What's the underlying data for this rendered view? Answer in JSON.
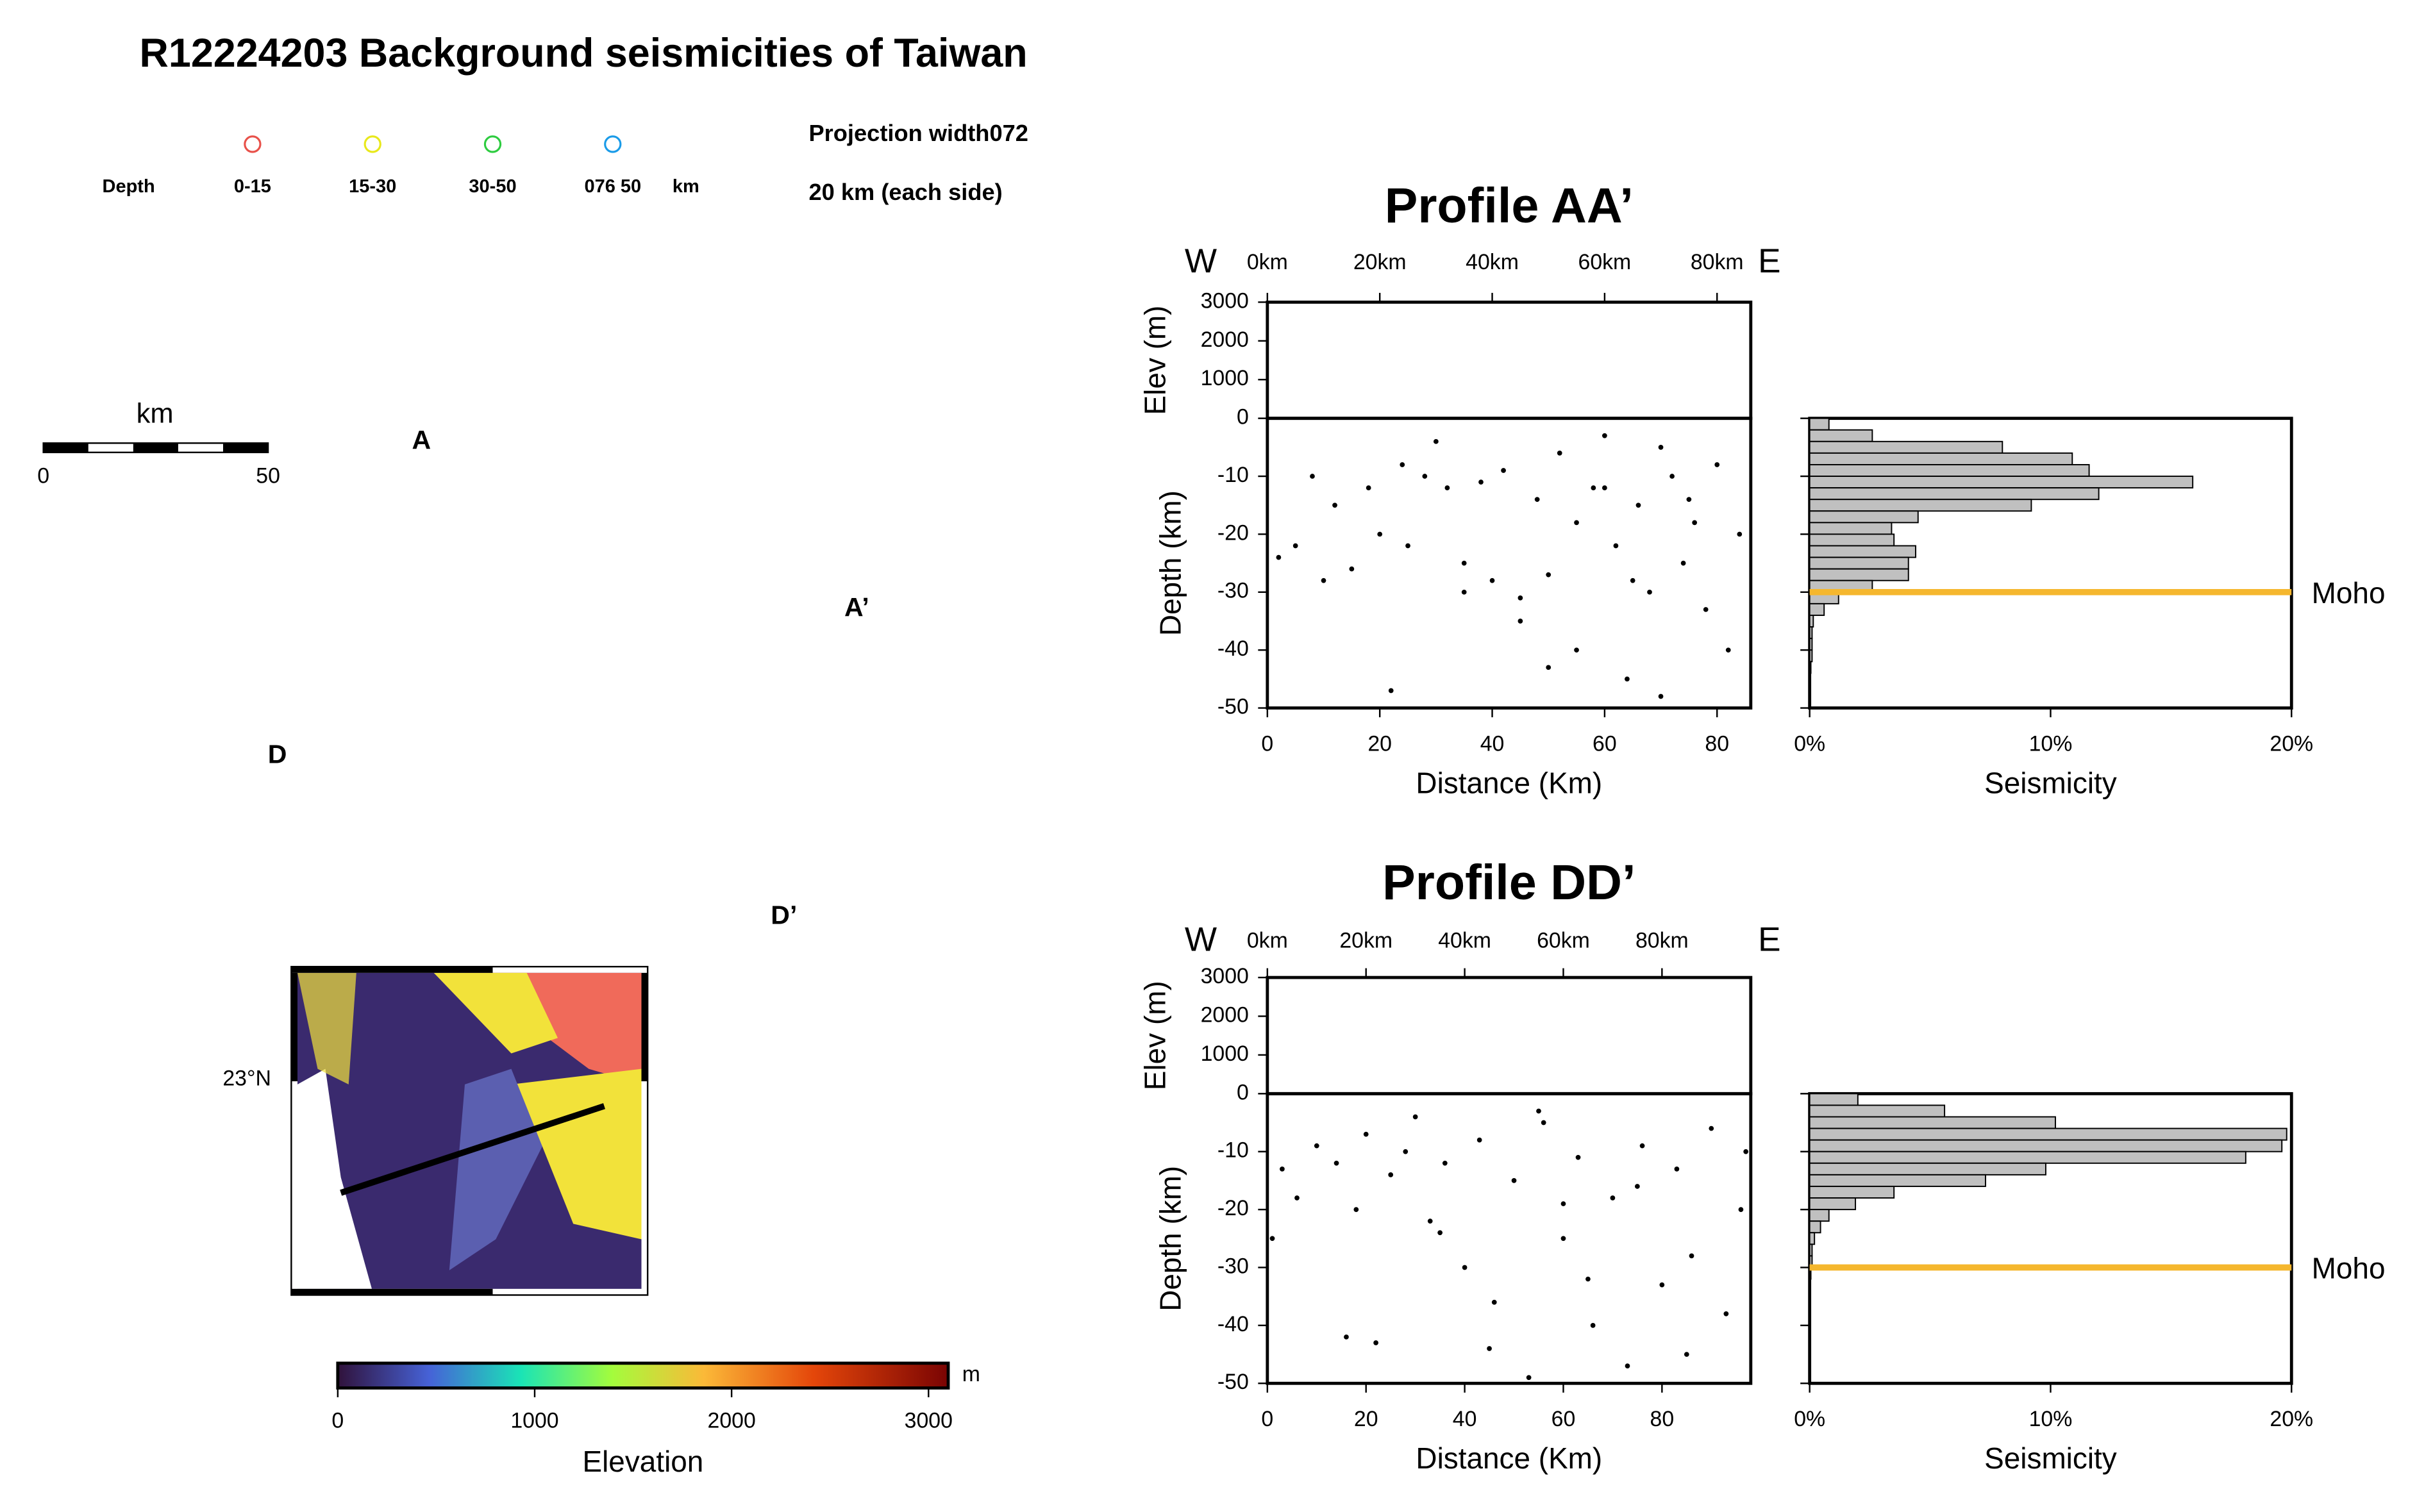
{
  "title": "R12224203 Background seismicities of Taiwan",
  "legend": {
    "label": "Depth",
    "unit": "km",
    "items": [
      {
        "label": "0-15",
        "color": "#e8514a"
      },
      {
        "label": "15-30",
        "color": "#e8e81a"
      },
      {
        "label": "30-50",
        "color": "#2ecc40"
      },
      {
        "label": "076 50",
        "color": "#1a9be8"
      }
    ]
  },
  "projection": {
    "line1": "Projection width072",
    "line2": "20 km (each side)"
  },
  "scale_bar": {
    "label": "km",
    "ticks": [
      0,
      50
    ]
  },
  "map": {
    "labels": [
      "A",
      "A’",
      "D",
      "D’"
    ],
    "lat_label": "23°N"
  },
  "colorbar": {
    "label": "Elevation",
    "unit": "m",
    "lim": [
      0,
      3100
    ],
    "ticks": [
      0,
      1000,
      2000,
      3000
    ]
  },
  "profiles": [
    {
      "type": "scatter",
      "title": "Profile AA’",
      "left": "W",
      "right": "E",
      "top_xticks": [
        {
          "value": 0,
          "label": "0km"
        },
        {
          "value": 20,
          "label": "20km"
        },
        {
          "value": 40,
          "label": "40km"
        },
        {
          "value": 60,
          "label": "60km"
        },
        {
          "value": 80,
          "label": "80km"
        }
      ],
      "elev_label": "Elev (m)",
      "elev_ylim": [
        0,
        3000
      ],
      "elev_yticks": [
        1000,
        2000,
        3000
      ],
      "ylabel": "Depth (km)",
      "xlabel": "Distance (Km)",
      "xlim": [
        0,
        86
      ],
      "xticks": [
        0,
        20,
        40,
        60,
        80
      ],
      "ylim": [
        -50,
        0
      ],
      "yticks": [
        -50,
        -40,
        -30,
        -20,
        -10,
        0
      ],
      "x": [
        2,
        5,
        8,
        10,
        12,
        15,
        18,
        20,
        22,
        24,
        25,
        28,
        30,
        32,
        35,
        38,
        40,
        42,
        45,
        48,
        50,
        52,
        55,
        58,
        60,
        62,
        64,
        66,
        68,
        70,
        72,
        74,
        76,
        78,
        80,
        82,
        84,
        60,
        70,
        55,
        45,
        65,
        75,
        50,
        35
      ],
      "y": [
        -24,
        -22,
        -10,
        -28,
        -15,
        -26,
        -12,
        -20,
        -47,
        -8,
        -22,
        -10,
        -4,
        -12,
        -25,
        -11,
        -28,
        -9,
        -31,
        -14,
        -27,
        -6,
        -40,
        -12,
        -3,
        -22,
        -45,
        -15,
        -30,
        -48,
        -10,
        -25,
        -18,
        -33,
        -8,
        -40,
        -20,
        -12,
        -5,
        -18,
        -35,
        -28,
        -14,
        -43,
        -30
      ],
      "color": "#000000",
      "hist": {
        "type": "bar",
        "xlabel": "Seismicity",
        "color": "#c0c0c0",
        "xlim": [
          0,
          20
        ],
        "xticks": [
          {
            "value": 0,
            "label": "0%"
          },
          {
            "value": 10,
            "label": "10%"
          },
          {
            "value": 20,
            "label": "20%"
          }
        ],
        "bins": [
          0,
          -2,
          -4,
          -6,
          -8,
          -10,
          -12,
          -14,
          -16,
          -18,
          -20,
          -22,
          -24,
          -26,
          -28,
          -30,
          -32,
          -34,
          -36,
          -38,
          -40,
          -42,
          -44,
          -46,
          -48,
          -50
        ],
        "values": [
          0.8,
          2.6,
          8.0,
          10.9,
          11.6,
          15.9,
          12.0,
          9.2,
          4.5,
          3.4,
          3.5,
          4.4,
          4.1,
          4.1,
          2.6,
          1.2,
          0.6,
          0.15,
          0.1,
          0.1,
          0.1,
          0.05,
          0,
          0,
          0
        ]
      },
      "moho": {
        "value": -30,
        "label": "Moho",
        "color": "#f5b72e"
      }
    },
    {
      "type": "scatter",
      "title": "Profile DD’",
      "left": "W",
      "right": "E",
      "top_xticks": [
        {
          "value": 0,
          "label": "0km"
        },
        {
          "value": 20,
          "label": "20km"
        },
        {
          "value": 40,
          "label": "40km"
        },
        {
          "value": 60,
          "label": "60km"
        },
        {
          "value": 80,
          "label": "80km"
        }
      ],
      "elev_label": "Elev (m)",
      "elev_ylim": [
        0,
        3000
      ],
      "elev_yticks": [
        1000,
        2000,
        3000
      ],
      "ylabel": "Depth (km)",
      "xlabel": "Distance (Km)",
      "xlim": [
        0,
        98
      ],
      "xticks": [
        0,
        20,
        40,
        60,
        80
      ],
      "ylim": [
        -50,
        0
      ],
      "yticks": [
        -50,
        -40,
        -30,
        -20,
        -10,
        0
      ],
      "x": [
        1,
        3,
        6,
        10,
        14,
        16,
        18,
        20,
        22,
        25,
        28,
        30,
        33,
        36,
        40,
        43,
        46,
        50,
        53,
        56,
        60,
        63,
        66,
        70,
        73,
        76,
        80,
        83,
        86,
        90,
        93,
        96,
        97,
        45,
        55,
        65,
        75,
        85,
        35,
        60
      ],
      "y": [
        -25,
        -13,
        -18,
        -9,
        -12,
        -42,
        -20,
        -7,
        -43,
        -14,
        -10,
        -4,
        -22,
        -12,
        -30,
        -8,
        -36,
        -15,
        -49,
        -5,
        -25,
        -11,
        -40,
        -18,
        -47,
        -9,
        -33,
        -13,
        -28,
        -6,
        -38,
        -20,
        -10,
        -44,
        -3,
        -32,
        -16,
        -45,
        -24,
        -19
      ],
      "color": "#000000",
      "hist": {
        "type": "bar",
        "xlabel": "Seismicity",
        "color": "#c0c0c0",
        "xlim": [
          0,
          20
        ],
        "xticks": [
          {
            "value": 0,
            "label": "0%"
          },
          {
            "value": 10,
            "label": "10%"
          },
          {
            "value": 20,
            "label": "20%"
          }
        ],
        "bins": [
          0,
          -2,
          -4,
          -6,
          -8,
          -10,
          -12,
          -14,
          -16,
          -18,
          -20,
          -22,
          -24,
          -26,
          -28,
          -30,
          -32,
          -34,
          -36,
          -38,
          -40,
          -42,
          -44,
          -46,
          -48,
          -50
        ],
        "values": [
          2.0,
          5.6,
          10.2,
          19.8,
          19.6,
          18.1,
          9.8,
          7.3,
          3.5,
          1.9,
          0.8,
          0.45,
          0.2,
          0.1,
          0.1,
          0.05,
          0,
          0,
          0,
          0,
          0,
          0,
          0,
          0,
          0
        ]
      },
      "moho": {
        "value": -30,
        "label": "Moho",
        "color": "#f5b72e"
      }
    }
  ]
}
